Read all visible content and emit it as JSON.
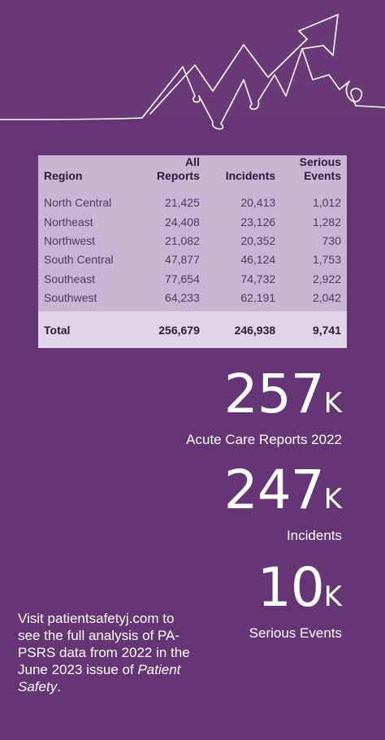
{
  "table": {
    "headers": [
      "Region",
      "All Reports",
      "Incidents",
      "Serious Events"
    ],
    "header_lines": [
      [
        "Region"
      ],
      [
        "All",
        "Reports"
      ],
      [
        "Incidents"
      ],
      [
        "Serious",
        "Events"
      ]
    ],
    "rows": [
      [
        "North Central",
        "21,425",
        "20,413",
        "1,012"
      ],
      [
        "Northeast",
        "24,408",
        "23,126",
        "1,282"
      ],
      [
        "Northwest",
        "21,082",
        "20,352",
        "730"
      ],
      [
        "South Central",
        "47,877",
        "46,124",
        "1,753"
      ],
      [
        "Southeast",
        "77,654",
        "74,732",
        "2,922"
      ],
      [
        "Southwest",
        "64,233",
        "62,191",
        "2,042"
      ]
    ],
    "total": [
      "Total",
      "256,679",
      "246,938",
      "9,741"
    ]
  },
  "stats": [
    {
      "value": "257",
      "unit": "K",
      "label": "Acute Care Reports 2022"
    },
    {
      "value": "247",
      "unit": "K",
      "label": "Incidents"
    },
    {
      "value": "10",
      "unit": "K",
      "label": "Serious Events"
    }
  ],
  "note": {
    "text": "Visit patientsafetyj.com to see the full analysis of PA-PSRS data from 2022 in the June 2023 issue of",
    "emphasis": "Patient Safety",
    "end": "."
  },
  "colors": {
    "background": "#663575",
    "table_bg": "#c7b5d1",
    "total_bg": "#e0d4e6"
  },
  "decoration": "trend-line-arrow-icon"
}
